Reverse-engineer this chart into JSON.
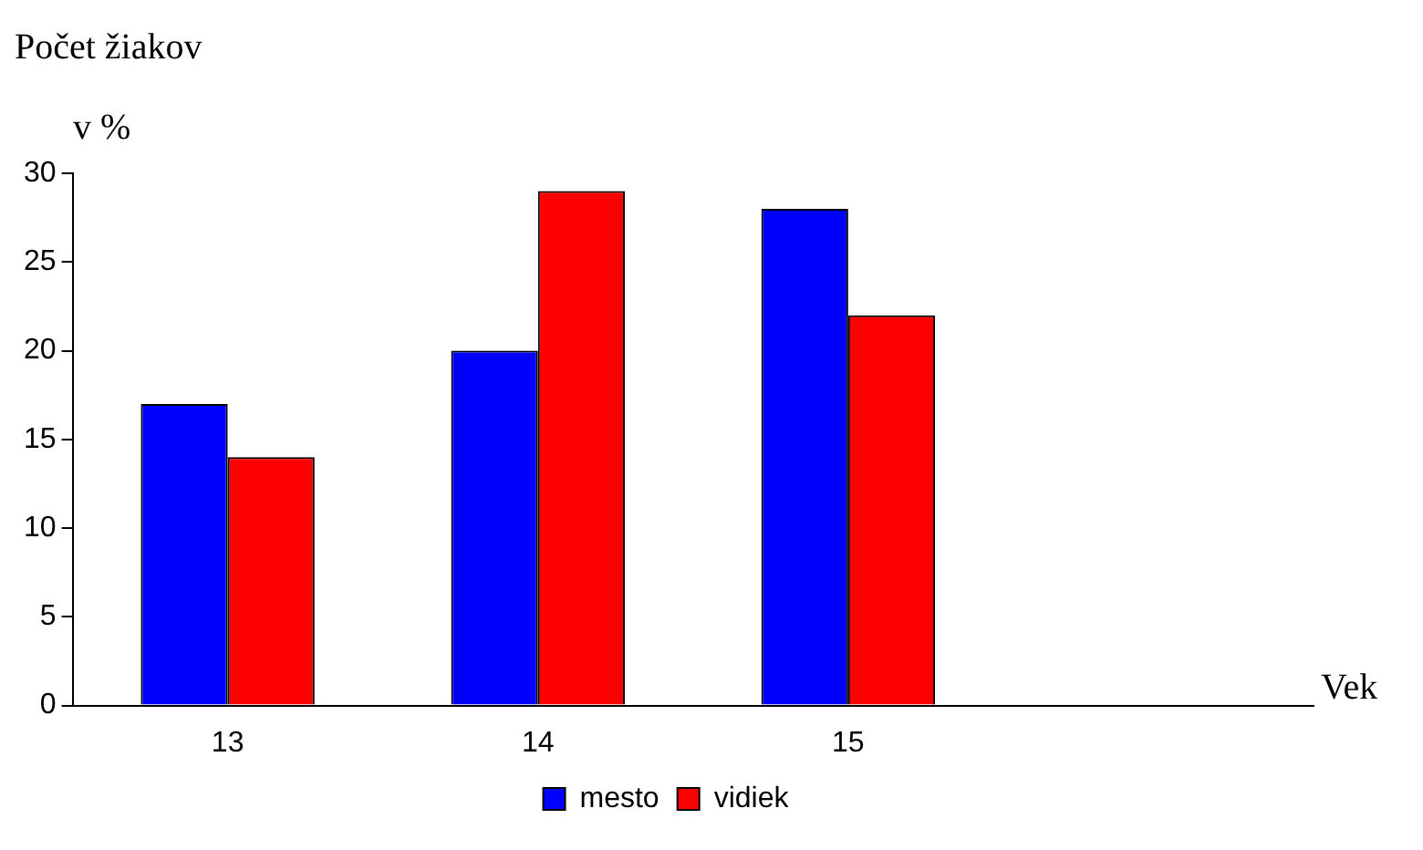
{
  "chart_data": {
    "type": "bar",
    "ylabel": "Počet žiakov\nv %",
    "xlabel": "Vek",
    "categories": [
      "13",
      "14",
      "15",
      null
    ],
    "series": [
      {
        "name": "mesto",
        "color": "#0000ff",
        "values": [
          17,
          20,
          28,
          null
        ]
      },
      {
        "name": "vidiek",
        "color": "#ff0000",
        "values": [
          14,
          29,
          22,
          null
        ]
      }
    ],
    "ylim": [
      0,
      30
    ],
    "yticks": [
      0,
      5,
      10,
      15,
      20,
      25,
      30
    ],
    "grid": false,
    "legend": "bottom"
  }
}
